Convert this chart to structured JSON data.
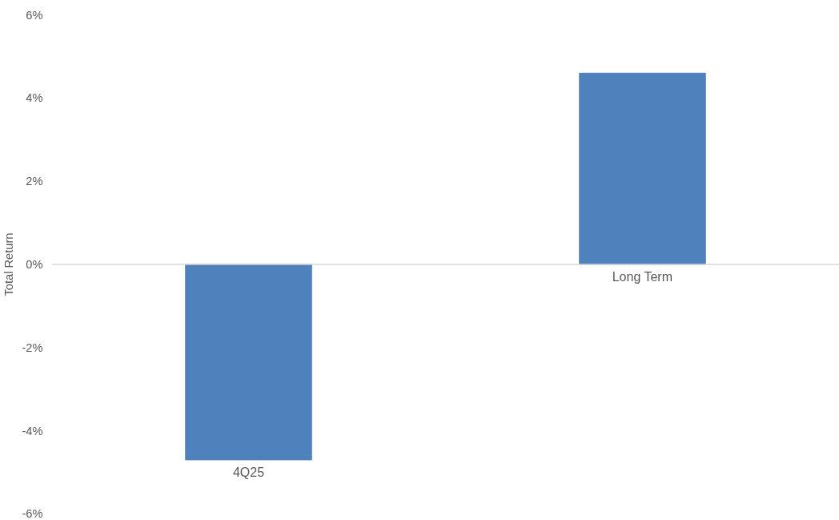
{
  "chart_data": {
    "type": "bar",
    "ylabel": "Total Return",
    "categories": [
      "4Q25",
      "Long Term"
    ],
    "values": [
      -4.7,
      4.6
    ],
    "color": "#4f81bd",
    "ylim": [
      -6,
      6
    ],
    "yticks": [
      {
        "value": -6,
        "label": "-6%"
      },
      {
        "value": -4,
        "label": "-4%"
      },
      {
        "value": -2,
        "label": "-2%"
      },
      {
        "value": 0,
        "label": "0%"
      },
      {
        "value": 2,
        "label": "2%"
      },
      {
        "value": 4,
        "label": "4%"
      },
      {
        "value": 6,
        "label": "6%"
      }
    ],
    "ref_lines": [
      {
        "axis": "y",
        "value": 0,
        "color": "#d9d9d9"
      }
    ]
  }
}
